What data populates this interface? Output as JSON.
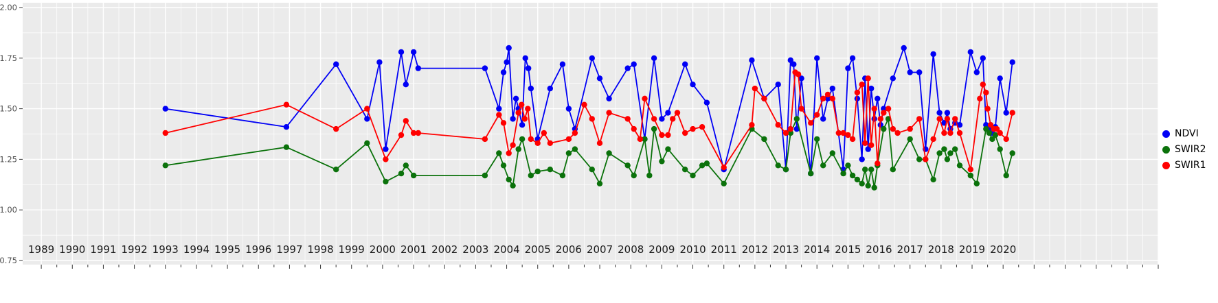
{
  "chart_data": {
    "type": "line",
    "title": "",
    "panel_background": "#EBEBEB",
    "grid_color": "#FFFFFF",
    "tick_color": "#333333",
    "axis_text_color": "#4d4d4d",
    "x_label_color": "#1a1a1a",
    "x_axis": {
      "range": [
        1988.4,
        2025.0
      ],
      "labels": [
        "1989",
        "1990",
        "1991",
        "1992",
        "1993",
        "1994",
        "1995",
        "1996",
        "1997",
        "1998",
        "1999",
        "2000",
        "2001",
        "2002",
        "2003",
        "2004",
        "2005",
        "2006",
        "2007",
        "2008",
        "2009",
        "2010",
        "2011",
        "2012",
        "2013",
        "2014",
        "2015",
        "2016",
        "2017",
        "2018",
        "2019",
        "2020"
      ],
      "tick_step": 1,
      "minor_step": 0.5
    },
    "y_axis": {
      "range": [
        0.75,
        2.0
      ],
      "ticks": [
        0.75,
        1.0,
        1.25,
        1.5,
        1.75,
        2.0
      ],
      "labels": [
        "0.75",
        "1.00",
        "1.25",
        "1.50",
        "1.75",
        "2.00"
      ]
    },
    "legend": {
      "position": "right",
      "entries": [
        "NDVI",
        "SWIR2",
        "SWIR1"
      ]
    },
    "series": [
      {
        "name": "NDVI",
        "color": "#0000F5",
        "points": [
          [
            1993.0,
            1.5
          ],
          [
            1996.9,
            1.41
          ],
          [
            1998.5,
            1.72
          ],
          [
            1999.5,
            1.45
          ],
          [
            1999.9,
            1.73
          ],
          [
            2000.1,
            1.3
          ],
          [
            2000.6,
            1.78
          ],
          [
            2000.75,
            1.62
          ],
          [
            2001.0,
            1.78
          ],
          [
            2001.15,
            1.7
          ],
          [
            2003.3,
            1.7
          ],
          [
            2003.75,
            1.5
          ],
          [
            2003.9,
            1.68
          ],
          [
            2004.0,
            1.73
          ],
          [
            2004.07,
            1.8
          ],
          [
            2004.2,
            1.45
          ],
          [
            2004.3,
            1.55
          ],
          [
            2004.38,
            1.5
          ],
          [
            2004.5,
            1.42
          ],
          [
            2004.6,
            1.75
          ],
          [
            2004.7,
            1.7
          ],
          [
            2004.78,
            1.6
          ],
          [
            2005.0,
            1.35
          ],
          [
            2005.4,
            1.6
          ],
          [
            2005.8,
            1.72
          ],
          [
            2006.0,
            1.5
          ],
          [
            2006.2,
            1.4
          ],
          [
            2006.75,
            1.75
          ],
          [
            2007.0,
            1.65
          ],
          [
            2007.3,
            1.55
          ],
          [
            2007.9,
            1.7
          ],
          [
            2008.1,
            1.72
          ],
          [
            2008.45,
            1.35
          ],
          [
            2008.75,
            1.75
          ],
          [
            2009.0,
            1.45
          ],
          [
            2009.2,
            1.48
          ],
          [
            2009.75,
            1.72
          ],
          [
            2010.0,
            1.62
          ],
          [
            2010.45,
            1.53
          ],
          [
            2011.0,
            1.2
          ],
          [
            2011.9,
            1.74
          ],
          [
            2012.3,
            1.55
          ],
          [
            2012.75,
            1.62
          ],
          [
            2013.0,
            1.2
          ],
          [
            2013.15,
            1.74
          ],
          [
            2013.25,
            1.72
          ],
          [
            2013.35,
            1.4
          ],
          [
            2013.5,
            1.65
          ],
          [
            2013.8,
            1.18
          ],
          [
            2014.0,
            1.75
          ],
          [
            2014.2,
            1.45
          ],
          [
            2014.35,
            1.55
          ],
          [
            2014.5,
            1.6
          ],
          [
            2014.85,
            1.2
          ],
          [
            2015.0,
            1.7
          ],
          [
            2015.15,
            1.75
          ],
          [
            2015.3,
            1.55
          ],
          [
            2015.45,
            1.25
          ],
          [
            2015.55,
            1.65
          ],
          [
            2015.65,
            1.3
          ],
          [
            2015.75,
            1.6
          ],
          [
            2015.85,
            1.45
          ],
          [
            2015.95,
            1.55
          ],
          [
            2016.05,
            1.42
          ],
          [
            2016.15,
            1.5
          ],
          [
            2016.45,
            1.65
          ],
          [
            2016.8,
            1.8
          ],
          [
            2017.0,
            1.68
          ],
          [
            2017.3,
            1.68
          ],
          [
            2017.5,
            1.3
          ],
          [
            2017.75,
            1.77
          ],
          [
            2017.95,
            1.48
          ],
          [
            2018.1,
            1.43
          ],
          [
            2018.2,
            1.48
          ],
          [
            2018.3,
            1.4
          ],
          [
            2018.45,
            1.43
          ],
          [
            2018.6,
            1.42
          ],
          [
            2018.95,
            1.78
          ],
          [
            2019.15,
            1.68
          ],
          [
            2019.35,
            1.75
          ],
          [
            2019.45,
            1.42
          ],
          [
            2019.55,
            1.4
          ],
          [
            2019.65,
            1.38
          ],
          [
            2019.75,
            1.41
          ],
          [
            2019.9,
            1.65
          ],
          [
            2020.1,
            1.48
          ],
          [
            2020.3,
            1.73
          ]
        ]
      },
      {
        "name": "SWIR2",
        "color": "#0B720B",
        "points": [
          [
            1993.0,
            1.22
          ],
          [
            1996.9,
            1.31
          ],
          [
            1998.5,
            1.2
          ],
          [
            1999.5,
            1.33
          ],
          [
            2000.1,
            1.14
          ],
          [
            2000.6,
            1.18
          ],
          [
            2000.75,
            1.22
          ],
          [
            2001.0,
            1.17
          ],
          [
            2003.3,
            1.17
          ],
          [
            2003.75,
            1.28
          ],
          [
            2003.9,
            1.22
          ],
          [
            2004.07,
            1.15
          ],
          [
            2004.2,
            1.12
          ],
          [
            2004.38,
            1.3
          ],
          [
            2004.5,
            1.35
          ],
          [
            2004.78,
            1.17
          ],
          [
            2005.0,
            1.19
          ],
          [
            2005.4,
            1.2
          ],
          [
            2005.8,
            1.17
          ],
          [
            2006.0,
            1.28
          ],
          [
            2006.2,
            1.3
          ],
          [
            2006.75,
            1.2
          ],
          [
            2007.0,
            1.13
          ],
          [
            2007.3,
            1.28
          ],
          [
            2007.9,
            1.22
          ],
          [
            2008.1,
            1.17
          ],
          [
            2008.45,
            1.35
          ],
          [
            2008.6,
            1.17
          ],
          [
            2008.75,
            1.4
          ],
          [
            2009.0,
            1.24
          ],
          [
            2009.2,
            1.3
          ],
          [
            2009.75,
            1.2
          ],
          [
            2010.0,
            1.17
          ],
          [
            2010.3,
            1.22
          ],
          [
            2010.45,
            1.23
          ],
          [
            2011.0,
            1.13
          ],
          [
            2011.9,
            1.4
          ],
          [
            2012.3,
            1.35
          ],
          [
            2012.75,
            1.22
          ],
          [
            2013.0,
            1.2
          ],
          [
            2013.15,
            1.38
          ],
          [
            2013.35,
            1.45
          ],
          [
            2013.8,
            1.18
          ],
          [
            2014.0,
            1.35
          ],
          [
            2014.2,
            1.22
          ],
          [
            2014.5,
            1.28
          ],
          [
            2014.85,
            1.18
          ],
          [
            2015.0,
            1.22
          ],
          [
            2015.15,
            1.17
          ],
          [
            2015.3,
            1.15
          ],
          [
            2015.45,
            1.13
          ],
          [
            2015.55,
            1.2
          ],
          [
            2015.65,
            1.12
          ],
          [
            2015.75,
            1.2
          ],
          [
            2015.85,
            1.11
          ],
          [
            2015.95,
            1.22
          ],
          [
            2016.15,
            1.4
          ],
          [
            2016.3,
            1.45
          ],
          [
            2016.45,
            1.2
          ],
          [
            2017.0,
            1.35
          ],
          [
            2017.3,
            1.25
          ],
          [
            2017.5,
            1.25
          ],
          [
            2017.75,
            1.15
          ],
          [
            2017.95,
            1.28
          ],
          [
            2018.1,
            1.3
          ],
          [
            2018.2,
            1.25
          ],
          [
            2018.3,
            1.28
          ],
          [
            2018.45,
            1.3
          ],
          [
            2018.6,
            1.22
          ],
          [
            2018.95,
            1.17
          ],
          [
            2019.15,
            1.13
          ],
          [
            2019.45,
            1.4
          ],
          [
            2019.55,
            1.38
          ],
          [
            2019.65,
            1.35
          ],
          [
            2019.75,
            1.37
          ],
          [
            2019.9,
            1.3
          ],
          [
            2020.1,
            1.17
          ],
          [
            2020.3,
            1.28
          ]
        ]
      },
      {
        "name": "SWIR1",
        "color": "#FF0000",
        "points": [
          [
            1993.0,
            1.38
          ],
          [
            1996.9,
            1.52
          ],
          [
            1998.5,
            1.4
          ],
          [
            1999.5,
            1.5
          ],
          [
            2000.1,
            1.25
          ],
          [
            2000.6,
            1.37
          ],
          [
            2000.75,
            1.44
          ],
          [
            2001.0,
            1.38
          ],
          [
            2001.15,
            1.38
          ],
          [
            2003.3,
            1.35
          ],
          [
            2003.75,
            1.47
          ],
          [
            2003.9,
            1.43
          ],
          [
            2004.07,
            1.28
          ],
          [
            2004.2,
            1.32
          ],
          [
            2004.38,
            1.48
          ],
          [
            2004.48,
            1.52
          ],
          [
            2004.58,
            1.45
          ],
          [
            2004.68,
            1.5
          ],
          [
            2004.78,
            1.35
          ],
          [
            2005.0,
            1.33
          ],
          [
            2005.2,
            1.38
          ],
          [
            2005.4,
            1.33
          ],
          [
            2006.0,
            1.35
          ],
          [
            2006.2,
            1.38
          ],
          [
            2006.5,
            1.52
          ],
          [
            2006.75,
            1.45
          ],
          [
            2007.0,
            1.33
          ],
          [
            2007.3,
            1.48
          ],
          [
            2007.9,
            1.45
          ],
          [
            2008.1,
            1.4
          ],
          [
            2008.3,
            1.35
          ],
          [
            2008.45,
            1.55
          ],
          [
            2008.75,
            1.45
          ],
          [
            2009.0,
            1.37
          ],
          [
            2009.2,
            1.37
          ],
          [
            2009.35,
            1.45
          ],
          [
            2009.5,
            1.48
          ],
          [
            2009.75,
            1.38
          ],
          [
            2010.0,
            1.4
          ],
          [
            2010.3,
            1.41
          ],
          [
            2011.0,
            1.21
          ],
          [
            2011.9,
            1.42
          ],
          [
            2012.0,
            1.6
          ],
          [
            2012.3,
            1.55
          ],
          [
            2012.75,
            1.42
          ],
          [
            2013.0,
            1.38
          ],
          [
            2013.15,
            1.4
          ],
          [
            2013.3,
            1.68
          ],
          [
            2013.4,
            1.67
          ],
          [
            2013.5,
            1.5
          ],
          [
            2013.8,
            1.43
          ],
          [
            2014.0,
            1.47
          ],
          [
            2014.2,
            1.55
          ],
          [
            2014.35,
            1.57
          ],
          [
            2014.5,
            1.55
          ],
          [
            2014.7,
            1.38
          ],
          [
            2014.85,
            1.38
          ],
          [
            2015.0,
            1.37
          ],
          [
            2015.15,
            1.35
          ],
          [
            2015.3,
            1.58
          ],
          [
            2015.45,
            1.62
          ],
          [
            2015.55,
            1.33
          ],
          [
            2015.65,
            1.65
          ],
          [
            2015.75,
            1.32
          ],
          [
            2015.85,
            1.5
          ],
          [
            2015.95,
            1.23
          ],
          [
            2016.05,
            1.45
          ],
          [
            2016.15,
            1.48
          ],
          [
            2016.3,
            1.5
          ],
          [
            2016.45,
            1.4
          ],
          [
            2016.6,
            1.38
          ],
          [
            2017.0,
            1.4
          ],
          [
            2017.3,
            1.45
          ],
          [
            2017.5,
            1.25
          ],
          [
            2017.75,
            1.35
          ],
          [
            2017.95,
            1.45
          ],
          [
            2018.1,
            1.38
          ],
          [
            2018.2,
            1.45
          ],
          [
            2018.3,
            1.38
          ],
          [
            2018.45,
            1.45
          ],
          [
            2018.6,
            1.38
          ],
          [
            2018.95,
            1.2
          ],
          [
            2019.25,
            1.55
          ],
          [
            2019.35,
            1.62
          ],
          [
            2019.45,
            1.58
          ],
          [
            2019.5,
            1.5
          ],
          [
            2019.6,
            1.42
          ],
          [
            2019.7,
            1.4
          ],
          [
            2019.8,
            1.4
          ],
          [
            2019.9,
            1.38
          ],
          [
            2020.1,
            1.35
          ],
          [
            2020.3,
            1.48
          ]
        ]
      }
    ]
  }
}
